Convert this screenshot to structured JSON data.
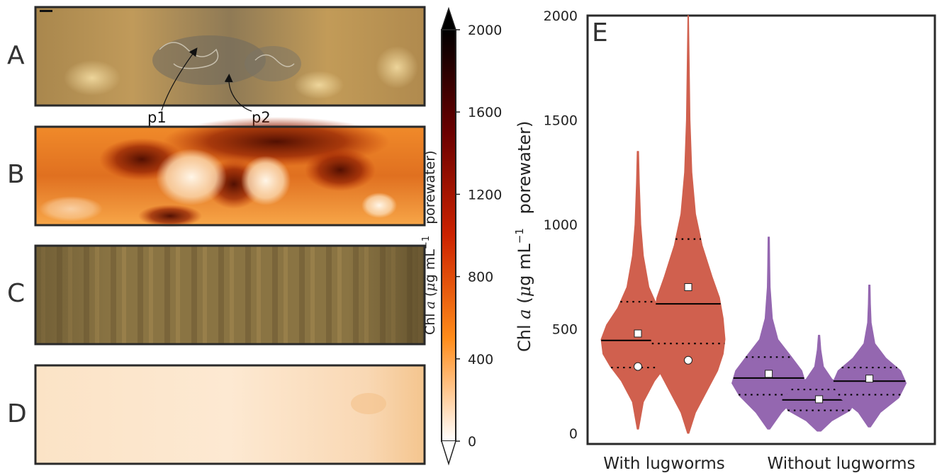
{
  "panels": {
    "A": "A",
    "B": "B",
    "C": "C",
    "D": "D",
    "E": "E"
  },
  "annotations": [
    "p1",
    "p2"
  ],
  "colorbar": {
    "label_prefix": "Chl",
    "label_italic": "a",
    "label_mid": "(",
    "label_mu": "μ",
    "label_unit": "g mL",
    "label_sup": "−1",
    "label_suffix": "porewater)",
    "range": [
      0,
      2000
    ],
    "ticks": [
      "2000",
      "1600",
      "1200",
      "800",
      "400",
      "0"
    ],
    "colors": [
      "#ffffff",
      "#ff8c1a",
      "#cc2200",
      "#6b0000",
      "#000000"
    ]
  },
  "colors": {
    "with_lugworms": "#d0604e",
    "without_lugworms": "#9467b0"
  },
  "chart_data": {
    "type": "violin",
    "ylim": [
      0,
      2000
    ],
    "yticks": [
      "0",
      "500",
      "1000",
      "1500",
      "2000"
    ],
    "ylabel_prefix": "Chl",
    "ylabel_italic": "a",
    "ylabel_mid": "(",
    "ylabel_mu": "μ",
    "ylabel_unit": "g mL",
    "ylabel_sup": "−1",
    "ylabel_suffix": "porewater)",
    "categories": [
      "With lugworms",
      "Without lugworms"
    ],
    "violins": [
      {
        "group": 0,
        "x": 0.0,
        "min": 20,
        "max": 1350,
        "q1": 315,
        "median": 445,
        "q3": 630,
        "mean": 478,
        "mode": 320,
        "shape": [
          [
            20,
            0.02
          ],
          [
            150,
            0.15
          ],
          [
            250,
            0.45
          ],
          [
            320,
            0.75
          ],
          [
            380,
            0.95
          ],
          [
            450,
            1.0
          ],
          [
            520,
            0.85
          ],
          [
            600,
            0.55
          ],
          [
            700,
            0.3
          ],
          [
            850,
            0.15
          ],
          [
            1000,
            0.08
          ],
          [
            1200,
            0.04
          ],
          [
            1350,
            0.02
          ]
        ]
      },
      {
        "group": 0,
        "x": 1.0,
        "min": 0,
        "max": 2000,
        "q1": 430,
        "median": 620,
        "q3": 930,
        "mean": 700,
        "mode": 350,
        "shape": [
          [
            0,
            0.02
          ],
          [
            100,
            0.2
          ],
          [
            200,
            0.5
          ],
          [
            300,
            0.8
          ],
          [
            380,
            0.95
          ],
          [
            450,
            1.0
          ],
          [
            550,
            0.95
          ],
          [
            650,
            0.85
          ],
          [
            750,
            0.65
          ],
          [
            900,
            0.38
          ],
          [
            1050,
            0.2
          ],
          [
            1250,
            0.1
          ],
          [
            1500,
            0.05
          ],
          [
            1750,
            0.03
          ],
          [
            2000,
            0.01
          ]
        ]
      },
      {
        "group": 1,
        "x": 2.6,
        "min": 20,
        "max": 940,
        "q1": 185,
        "median": 265,
        "q3": 365,
        "mean": 285,
        "shape": [
          [
            20,
            0.03
          ],
          [
            100,
            0.35
          ],
          [
            180,
            0.8
          ],
          [
            240,
            1.0
          ],
          [
            300,
            0.9
          ],
          [
            370,
            0.6
          ],
          [
            450,
            0.25
          ],
          [
            550,
            0.1
          ],
          [
            700,
            0.04
          ],
          [
            800,
            0.03
          ],
          [
            940,
            0.02
          ]
        ]
      },
      {
        "group": 1,
        "x": 3.6,
        "min": 10,
        "max": 470,
        "q1": 110,
        "median": 160,
        "q3": 210,
        "mean": 163,
        "shape": [
          [
            10,
            0.05
          ],
          [
            60,
            0.35
          ],
          [
            110,
            0.85
          ],
          [
            160,
            1.0
          ],
          [
            210,
            0.75
          ],
          [
            260,
            0.35
          ],
          [
            320,
            0.12
          ],
          [
            400,
            0.05
          ],
          [
            470,
            0.02
          ]
        ]
      },
      {
        "group": 1,
        "x": 4.6,
        "min": 30,
        "max": 710,
        "q1": 185,
        "median": 250,
        "q3": 315,
        "mean": 262,
        "shape": [
          [
            30,
            0.03
          ],
          [
            100,
            0.3
          ],
          [
            170,
            0.8
          ],
          [
            240,
            1.0
          ],
          [
            300,
            0.85
          ],
          [
            360,
            0.45
          ],
          [
            430,
            0.15
          ],
          [
            530,
            0.05
          ],
          [
            620,
            0.03
          ],
          [
            710,
            0.02
          ]
        ]
      }
    ]
  }
}
